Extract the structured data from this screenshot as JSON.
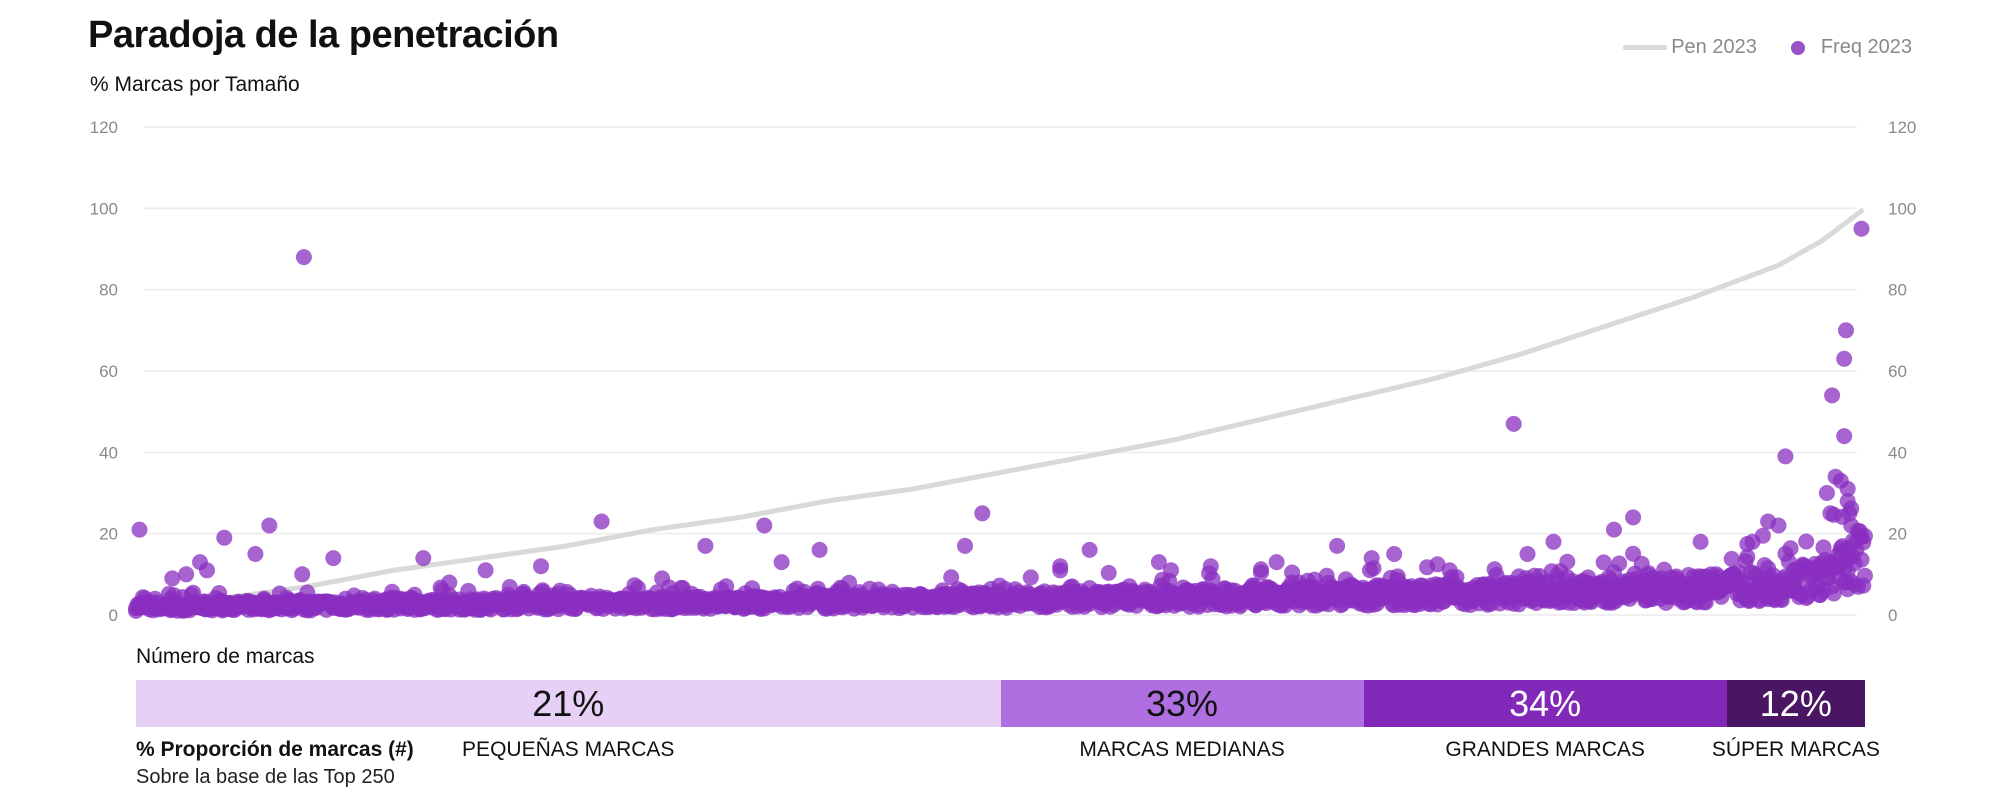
{
  "header": {
    "title": "Paradoja de la penetración",
    "subtitle": "% Marcas por Tamaño"
  },
  "legend": {
    "pen_label": "Pen 2023",
    "freq_label": "Freq 2023"
  },
  "colors": {
    "pen_line": "#d9d9d9",
    "freq_dot": "#8a2fc0",
    "small": "#e6d0f5",
    "medium": "#b06fe0",
    "large": "#8128b9",
    "super": "#4a1563",
    "grid": "#ececec",
    "tick": "#8a8a8a"
  },
  "chart_data": {
    "type": "scatter",
    "title": "Paradoja de la penetración",
    "subtitle": "% Marcas por Tamaño",
    "y_ticks": [
      0,
      20,
      40,
      60,
      80,
      100,
      120
    ],
    "ylim": [
      0,
      120
    ],
    "x_range": [
      1,
      1000
    ],
    "grid": true,
    "legend_position": "top-right",
    "series": [
      {
        "name": "Pen 2023",
        "type": "line",
        "x": [
          1,
          50,
          100,
          150,
          200,
          250,
          300,
          350,
          400,
          450,
          500,
          550,
          600,
          650,
          700,
          750,
          800,
          850,
          900,
          950,
          975,
          1000
        ],
        "values": [
          1,
          4,
          7,
          11,
          14,
          17,
          21,
          24,
          28,
          31,
          35,
          39,
          43,
          48,
          53,
          58,
          64,
          71,
          78,
          86,
          92,
          100
        ]
      },
      {
        "name": "Freq 2023",
        "type": "scatter",
        "outliers": [
          {
            "x": 3,
            "y": 21
          },
          {
            "x": 22,
            "y": 9
          },
          {
            "x": 30,
            "y": 10
          },
          {
            "x": 38,
            "y": 13
          },
          {
            "x": 42,
            "y": 11
          },
          {
            "x": 52,
            "y": 19
          },
          {
            "x": 70,
            "y": 15
          },
          {
            "x": 78,
            "y": 22
          },
          {
            "x": 98,
            "y": 88
          },
          {
            "x": 97,
            "y": 10
          },
          {
            "x": 115,
            "y": 14
          },
          {
            "x": 167,
            "y": 14
          },
          {
            "x": 182,
            "y": 8
          },
          {
            "x": 203,
            "y": 11
          },
          {
            "x": 235,
            "y": 12
          },
          {
            "x": 270,
            "y": 23
          },
          {
            "x": 305,
            "y": 9
          },
          {
            "x": 330,
            "y": 17
          },
          {
            "x": 364,
            "y": 22
          },
          {
            "x": 374,
            "y": 13
          },
          {
            "x": 396,
            "y": 16
          },
          {
            "x": 480,
            "y": 17
          },
          {
            "x": 490,
            "y": 25
          },
          {
            "x": 535,
            "y": 11
          },
          {
            "x": 535,
            "y": 12
          },
          {
            "x": 552,
            "y": 16
          },
          {
            "x": 592,
            "y": 13
          },
          {
            "x": 599,
            "y": 11
          },
          {
            "x": 622,
            "y": 12
          },
          {
            "x": 660,
            "y": 13
          },
          {
            "x": 695,
            "y": 17
          },
          {
            "x": 715,
            "y": 14
          },
          {
            "x": 728,
            "y": 15
          },
          {
            "x": 760,
            "y": 11
          },
          {
            "x": 797,
            "y": 47
          },
          {
            "x": 805,
            "y": 15
          },
          {
            "x": 820,
            "y": 18
          },
          {
            "x": 855,
            "y": 21
          },
          {
            "x": 866,
            "y": 24
          },
          {
            "x": 905,
            "y": 18
          },
          {
            "x": 935,
            "y": 18
          },
          {
            "x": 944,
            "y": 23
          },
          {
            "x": 950,
            "y": 22
          },
          {
            "x": 954,
            "y": 39
          },
          {
            "x": 978,
            "y": 30
          },
          {
            "x": 980,
            "y": 25
          },
          {
            "x": 981,
            "y": 54
          },
          {
            "x": 983,
            "y": 34
          },
          {
            "x": 986,
            "y": 33
          },
          {
            "x": 988,
            "y": 63
          },
          {
            "x": 988,
            "y": 44
          },
          {
            "x": 989,
            "y": 70
          },
          {
            "x": 990,
            "y": 31
          },
          {
            "x": 990,
            "y": 28
          },
          {
            "x": 991,
            "y": 25
          },
          {
            "x": 992,
            "y": 22
          },
          {
            "x": 998,
            "y": 95
          }
        ],
        "baseline_trend": {
          "x": [
            1,
            200,
            400,
            600,
            800,
            900,
            950,
            980,
            1000
          ],
          "y": [
            2,
            2.5,
            3,
            4,
            5,
            6,
            7,
            9,
            14
          ]
        }
      }
    ]
  },
  "bottom": {
    "section_title": "Número de marcas",
    "footnote_title": "% Proporción de marcas (#)",
    "footnote_sub": "Sobre la base de las Top 250",
    "segments": [
      {
        "pct": "21%",
        "share": 0.5,
        "label": "PEQUEÑAS MARCAS"
      },
      {
        "pct": "33%",
        "share": 0.21,
        "label": "MARCAS MEDIANAS"
      },
      {
        "pct": "34%",
        "share": 0.21,
        "label": "GRANDES MARCAS"
      },
      {
        "pct": "12%",
        "share": 0.08,
        "label": "SÚPER MARCAS"
      }
    ]
  }
}
